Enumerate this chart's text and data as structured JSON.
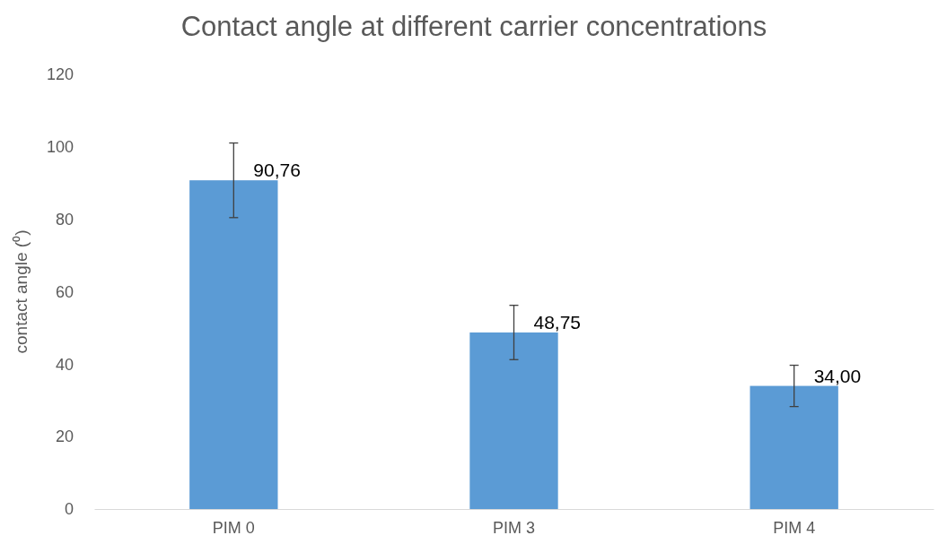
{
  "chart_data": {
    "type": "bar",
    "title": "Contact angle at different carrier concentrations",
    "ylabel": "contact angle (⁰)",
    "categories": [
      "PIM 0",
      "PIM 3",
      "PIM 4"
    ],
    "values": [
      90.76,
      48.75,
      34.0
    ],
    "errors": [
      10.3,
      7.5,
      5.7
    ],
    "value_labels": [
      "90,76",
      "48,75",
      "34,00"
    ],
    "color": "#5b9bd5",
    "ylim": [
      0,
      120
    ],
    "yticks": [
      0,
      20,
      40,
      60,
      80,
      100,
      120
    ],
    "grid": false
  }
}
